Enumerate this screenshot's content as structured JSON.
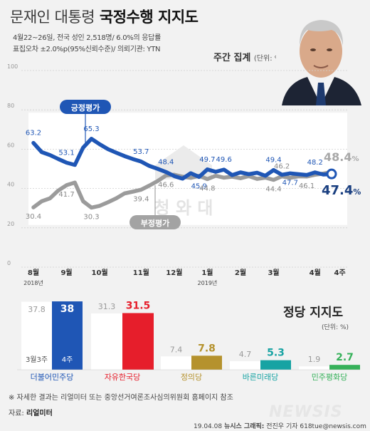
{
  "header": {
    "title_prefix": "문재인 대통령",
    "title_main": "국정수행 지지도",
    "meta_line1": "4월22~26일, 전국 성인 2,518명/ 6.0%의 응답률",
    "meta_line2": "표집오차 ±2.0%p(95%신뢰수준)/ 의뢰기관: YTN",
    "aggregate_label": "주간 집계",
    "aggregate_unit": "(단위: %)"
  },
  "watermark": {
    "text": "청 와 대"
  },
  "chart_data": [
    {
      "type": "line",
      "title": "",
      "xlabel": "",
      "ylabel": "",
      "ylim": [
        0,
        100
      ],
      "yticks": [
        "100",
        "80",
        "60",
        "40",
        "20",
        "0"
      ],
      "x_ticks": [
        {
          "label": "8월",
          "index": 0
        },
        {
          "label": "9월",
          "index": 4
        },
        {
          "label": "10월",
          "index": 8
        },
        {
          "label": "11월",
          "index": 13
        },
        {
          "label": "12월",
          "index": 17
        },
        {
          "label": "1월",
          "index": 21
        },
        {
          "label": "2월",
          "index": 25
        },
        {
          "label": "3월",
          "index": 29
        },
        {
          "label": "4월",
          "index": 34
        },
        {
          "label": "4주",
          "index": 37
        }
      ],
      "year_labels": [
        {
          "label": "2018년",
          "index": 0
        },
        {
          "label": "2019년",
          "index": 21
        }
      ],
      "grid": true,
      "series": [
        {
          "name": "긍정평가",
          "color": "#1f56b5",
          "values": [
            63.2,
            58.5,
            57.0,
            55.0,
            53.1,
            52.0,
            60.8,
            65.3,
            62.5,
            60.0,
            58.2,
            56.5,
            55.0,
            53.7,
            51.5,
            50.0,
            48.4,
            46.3,
            45.0,
            47.8,
            45.9,
            49.7,
            48.5,
            49.6,
            46.8,
            48.2,
            47.3,
            48.0,
            46.5,
            49.4,
            47.0,
            47.7,
            47.3,
            46.9,
            48.2,
            47.1,
            47.4
          ],
          "labels": [
            {
              "index": 0,
              "text": "63.2",
              "pos": "above"
            },
            {
              "index": 4,
              "text": "53.1",
              "pos": "above"
            },
            {
              "index": 7,
              "text": "65.3",
              "pos": "above"
            },
            {
              "index": 13,
              "text": "53.7",
              "pos": "above"
            },
            {
              "index": 16,
              "text": "48.4",
              "pos": "above"
            },
            {
              "index": 20,
              "text": "45.9",
              "pos": "below"
            },
            {
              "index": 21,
              "text": "49.7",
              "pos": "above"
            },
            {
              "index": 23,
              "text": "49.6",
              "pos": "above"
            },
            {
              "index": 29,
              "text": "49.4",
              "pos": "above"
            },
            {
              "index": 31,
              "text": "47.7",
              "pos": "below"
            },
            {
              "index": 34,
              "text": "48.2",
              "pos": "above"
            }
          ],
          "final_label": "47.4"
        },
        {
          "name": "부정평가",
          "color": "#9b9b9b",
          "values": [
            30.4,
            33.5,
            35.0,
            39.0,
            41.7,
            43.0,
            33.5,
            30.3,
            31.2,
            33.0,
            35.0,
            37.5,
            38.4,
            39.4,
            41.5,
            43.8,
            46.6,
            47.0,
            46.0,
            45.4,
            46.5,
            44.8,
            46.5,
            45.5,
            46.0,
            45.2,
            46.3,
            44.9,
            45.5,
            44.4,
            46.2,
            45.4,
            46.2,
            46.1,
            47.0,
            47.6,
            48.4
          ],
          "labels": [
            {
              "index": 0,
              "text": "30.4",
              "pos": "below"
            },
            {
              "index": 4,
              "text": "41.7",
              "pos": "below"
            },
            {
              "index": 7,
              "text": "30.3",
              "pos": "below"
            },
            {
              "index": 13,
              "text": "39.4",
              "pos": "below"
            },
            {
              "index": 16,
              "text": "46.6",
              "pos": "below"
            },
            {
              "index": 21,
              "text": "44.8",
              "pos": "below"
            },
            {
              "index": 29,
              "text": "44.4",
              "pos": "below"
            },
            {
              "index": 30,
              "text": "46.2",
              "pos": "above"
            },
            {
              "index": 33,
              "text": "46.1",
              "pos": "below"
            }
          ],
          "final_label": "48.4"
        }
      ],
      "unit_suffix": "%"
    },
    {
      "type": "bar",
      "title": "정당 지지도",
      "unit": "(단위: %)",
      "ylim": [
        0,
        40
      ],
      "series_names": [
        "3월3주",
        "4주"
      ],
      "categories": [
        "더불어민주당",
        "자유한국당",
        "정의당",
        "바른미래당",
        "민주평화당"
      ],
      "colors": [
        "#1f56b5",
        "#e61e2b",
        "#b5922d",
        "#17a3a3",
        "#36b15a"
      ],
      "previous": [
        37.8,
        31.3,
        7.4,
        4.7,
        1.9
      ],
      "current": [
        38,
        31.5,
        7.8,
        5.3,
        2.7
      ],
      "previous_labels": [
        "37.8",
        "31.3",
        "7.4",
        "4.7",
        "1.9"
      ],
      "current_labels": [
        "38",
        "31.5",
        "7.8",
        "5.3",
        "2.7"
      ]
    }
  ],
  "notes": {
    "line1": "※ 자세한 결과는 리얼미터 또는 중앙선거여론조사심의위원회 홈페이지 참조",
    "source_label": "자료:",
    "source_value": "리얼미터"
  },
  "footer": {
    "date": "19.04.08",
    "agency": "뉴시스 그래픽:",
    "credit": "전진우 기자 618tue@newsis.com",
    "logo": "NEWSIS"
  }
}
